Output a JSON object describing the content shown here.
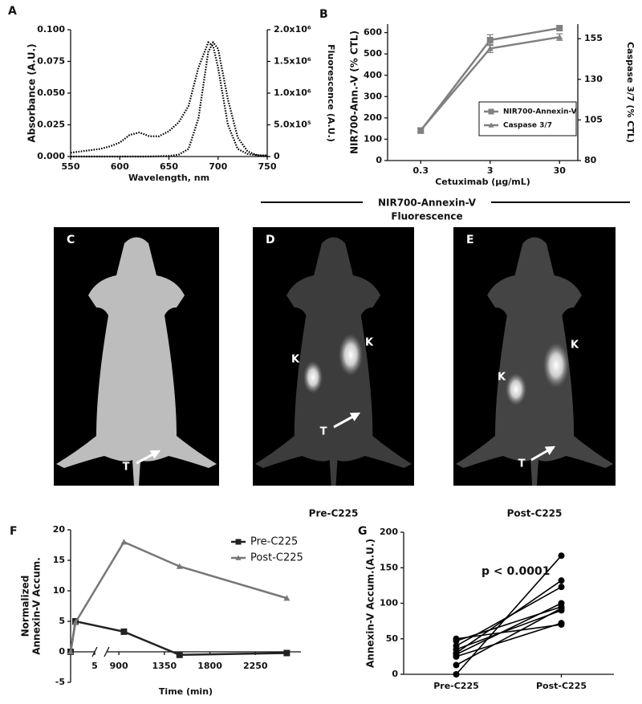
{
  "chart_data": [
    {
      "panel": "A",
      "type": "line",
      "xlabel": "Wavelength, nm",
      "ylabel": "Absorbance (A.U.)",
      "y2label": "Fluorescence (A.U.)",
      "x": [
        550,
        560,
        570,
        580,
        590,
        600,
        610,
        620,
        630,
        640,
        650,
        660,
        670,
        680,
        690,
        695,
        700,
        710,
        720,
        730,
        740,
        750
      ],
      "xlim": [
        550,
        750
      ],
      "xticks": [
        550,
        600,
        650,
        700,
        750
      ],
      "ylim": [
        0,
        0.1
      ],
      "yticks": [
        {
          "value": 0,
          "label": "0.000"
        },
        {
          "value": 0.025,
          "label": "0.025"
        },
        {
          "value": 0.05,
          "label": "0.050"
        },
        {
          "value": 0.075,
          "label": "0.075"
        },
        {
          "value": 0.1,
          "label": "0.100"
        }
      ],
      "y2lim": [
        0,
        2000000
      ],
      "y2ticks": [
        0,
        {
          "value": 500000,
          "label": "5.0x10⁵"
        },
        {
          "value": 1000000,
          "label": "1.0x10⁶"
        },
        {
          "value": 1500000,
          "label": "1.5x10⁶"
        },
        {
          "value": 2000000,
          "label": "2.0x10⁶"
        }
      ],
      "series": [
        {
          "color": "#000000",
          "style": "dotted",
          "values": [
            0.003,
            0.004,
            0.005,
            0.006,
            0.008,
            0.011,
            0.017,
            0.019,
            0.016,
            0.016,
            0.02,
            0.027,
            0.04,
            0.07,
            0.09,
            0.087,
            0.07,
            0.025,
            0.006,
            0.002,
            0.001,
            0.001
          ]
        },
        {
          "color": "#000000",
          "style": "dotted",
          "axis": "y2",
          "values": [
            0,
            0,
            0,
            0,
            0,
            0,
            0,
            0,
            0,
            5000,
            10000,
            30000,
            120000,
            600000,
            1650000,
            1800000,
            1700000,
            900000,
            300000,
            80000,
            20000,
            5000
          ]
        }
      ]
    },
    {
      "panel": "B",
      "type": "line",
      "xlabel": "Cetuximab (µg/mL)",
      "ylabel": "NIR700-Ann.-V (% CTL)",
      "y2label": "Caspase 3/7 (% CTL)",
      "x": [
        0.3,
        3,
        30
      ],
      "xlog": true,
      "xlim": [
        0.1,
        55
      ],
      "xticks": [
        0.3,
        3,
        30
      ],
      "ylim": [
        0,
        640
      ],
      "yticks": [
        0,
        100,
        200,
        300,
        400,
        500,
        600
      ],
      "y2lim": [
        80,
        164
      ],
      "y2ticks": [
        80,
        105,
        130,
        155
      ],
      "legend": "right",
      "series": [
        {
          "name": "NIR700-Annexin-V",
          "color": "#808080",
          "marker": "square",
          "values": [
            140,
            565,
            621
          ],
          "errors": [
            10,
            25,
            10
          ]
        },
        {
          "name": "Caspase 3/7",
          "color": "#808080",
          "marker": "triangle",
          "axis": "y2",
          "values": [
            98.7,
            149,
            156
          ],
          "errors": [
            1.5,
            2.5,
            2
          ]
        }
      ]
    },
    {
      "panel": "F",
      "type": "line",
      "xlabel": "Time (min)",
      "ylabel": [
        "Normalized",
        "Annexin-V Accum."
      ],
      "x": [
        0,
        1,
        950,
        1500,
        2560
      ],
      "xsegments": [
        {
          "xlim": [
            0,
            5
          ],
          "xticks": [
            5
          ]
        },
        {
          "xlim": [
            780,
            2700
          ],
          "xticks": [
            900,
            1350,
            1800,
            2250
          ]
        }
      ],
      "ylim": [
        -5,
        20
      ],
      "yticks": [
        -5,
        0,
        5,
        10,
        15,
        20
      ],
      "legend": "upper right",
      "series": [
        {
          "name": "Pre-C225",
          "color": "#222222",
          "marker": "square",
          "values": [
            0,
            5,
            3.3,
            -0.5,
            -0.2
          ]
        },
        {
          "name": "Post-C225",
          "color": "#777777",
          "marker": "triangle",
          "values": [
            0,
            4.8,
            18,
            14,
            8.8
          ]
        }
      ]
    },
    {
      "panel": "G",
      "type": "paired",
      "ylabel": "Annexin-V Accum.(A.U.)",
      "annotation": "p < 0.0001",
      "categories": [
        "Pre-C225",
        "Post-C225"
      ],
      "ylim": [
        0,
        200
      ],
      "yticks": [
        0,
        50,
        100,
        150,
        200
      ],
      "color": "#000000",
      "series": [
        {
          "values": [
            0,
            167
          ]
        },
        {
          "values": [
            13,
            93
          ]
        },
        {
          "values": [
            25,
            72
          ]
        },
        {
          "values": [
            28,
            100
          ]
        },
        {
          "values": [
            30,
            132
          ]
        },
        {
          "values": [
            35,
            90
          ]
        },
        {
          "values": [
            40,
            123
          ]
        },
        {
          "values": [
            47,
            95
          ]
        },
        {
          "values": [
            50,
            70
          ]
        }
      ]
    }
  ],
  "figure": {
    "header": [
      "NIR700-Annexin-V",
      "Fluorescence"
    ],
    "images": [
      {
        "label": "C",
        "annotations": [
          "T"
        ]
      },
      {
        "label": "D",
        "caption": "Pre-C225",
        "annotations": [
          "K",
          "K",
          "T"
        ]
      },
      {
        "label": "E",
        "caption": "Post-C225",
        "annotations": [
          "K",
          "K",
          "T"
        ]
      }
    ]
  }
}
